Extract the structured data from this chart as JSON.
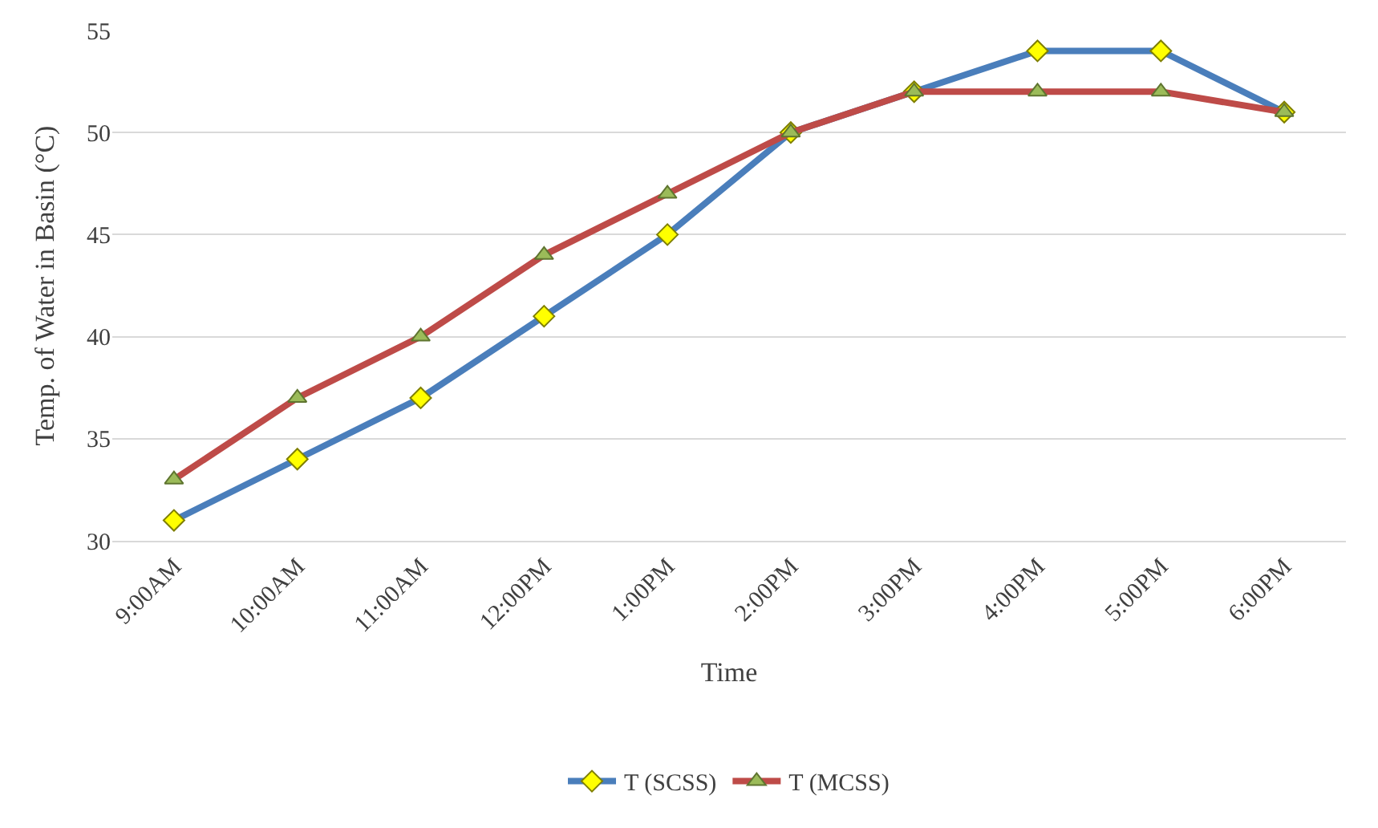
{
  "chart_data": {
    "type": "line",
    "xlabel": "Time",
    "ylabel": "Temp. of Water in Basin (°C)",
    "categories": [
      "9:00AM",
      "10:00AM",
      "11:00AM",
      "12:00PM",
      "1:00PM",
      "2:00PM",
      "3:00PM",
      "4:00PM",
      "5:00PM",
      "6:00PM"
    ],
    "series": [
      {
        "name": "T (SCSS)",
        "color": "#4a7ebb",
        "marker": "diamond",
        "values": [
          31,
          34,
          37,
          41,
          45,
          50,
          52,
          54,
          54,
          51
        ]
      },
      {
        "name": "T (MCSS)",
        "color": "#be4b48",
        "marker": "triangle",
        "values": [
          33,
          37,
          40,
          44,
          47,
          50,
          52,
          52,
          52,
          51
        ]
      }
    ],
    "ylim": [
      30,
      55
    ],
    "yticks": [
      30,
      35,
      40,
      45,
      50,
      55
    ],
    "grid": "y",
    "legend": "bottom",
    "line_style": "solid"
  }
}
